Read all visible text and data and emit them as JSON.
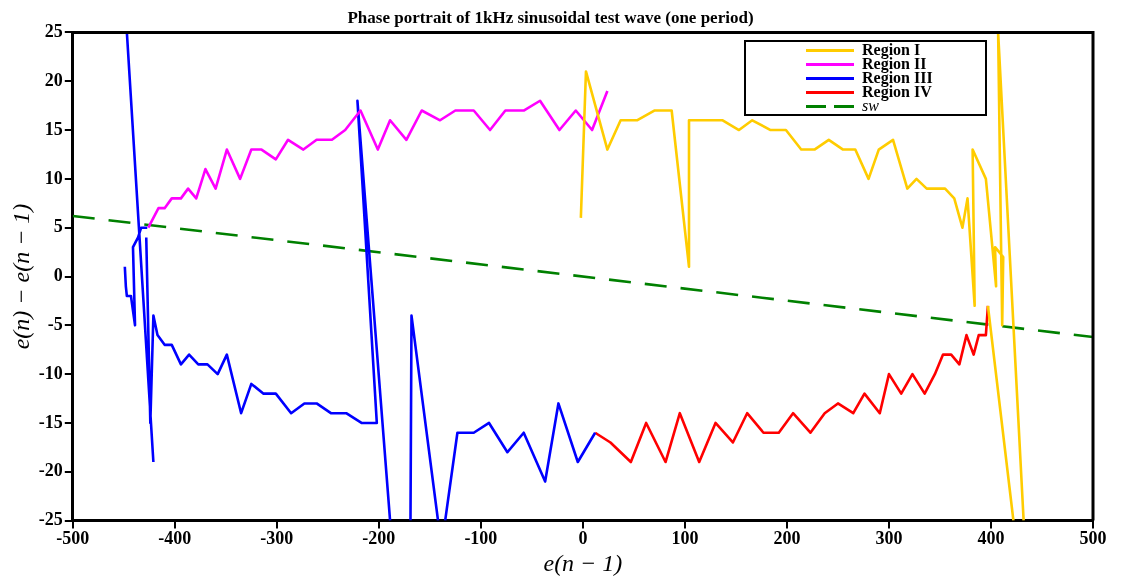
{
  "chart_data": {
    "type": "line",
    "title": "Phase portrait of 1kHz sinusoidal test wave (one period)",
    "xlabel": "e(n − 1)",
    "ylabel": "e(n) − e(n − 1)",
    "xlim": [
      -500,
      500
    ],
    "ylim": [
      -25,
      25
    ],
    "xticks": [
      -500,
      -400,
      -300,
      -200,
      -100,
      0,
      100,
      200,
      300,
      400,
      500
    ],
    "yticks": [
      -25,
      -20,
      -15,
      -10,
      -5,
      0,
      5,
      10,
      15,
      20,
      25
    ],
    "grid": false,
    "legend": "top right",
    "series": [
      {
        "name": "Region I",
        "color": "#ffcc00",
        "x": [
          -2,
          3,
          24,
          37,
          53,
          70,
          87,
          104,
          104,
          114,
          137,
          153,
          166,
          184,
          199,
          214,
          227,
          241,
          255,
          267,
          280,
          290,
          304,
          318,
          327,
          337,
          355,
          364,
          372,
          377,
          384,
          382,
          395,
          405,
          404,
          412,
          411,
          407,
          432,
          null,
          397,
          422
        ],
        "values": [
          6,
          21,
          13,
          16,
          16,
          17,
          17,
          1,
          16,
          16,
          16,
          15,
          16,
          15,
          15,
          13,
          13,
          14,
          13,
          13,
          10,
          13,
          14,
          9,
          10,
          9,
          9,
          8,
          5,
          8,
          -3,
          13,
          10,
          -1,
          3,
          2,
          -5,
          25,
          -25,
          null,
          -3,
          -25
        ]
      },
      {
        "name": "Region II",
        "color": "#ff00ff",
        "x": [
          -426,
          -416,
          -410,
          -403,
          -394,
          -387,
          -379,
          -370,
          -360,
          -349,
          -336,
          -325,
          -315,
          -301,
          -289,
          -274,
          -261,
          -246,
          -233,
          -218,
          -201,
          -189,
          -173,
          -158,
          -140,
          -125,
          -107,
          -91,
          -76,
          -58,
          -42,
          -23,
          -7,
          9,
          24
        ],
        "values": [
          5,
          7,
          7,
          8,
          8,
          9,
          8,
          11,
          9,
          13,
          10,
          13,
          13,
          12,
          14,
          13,
          14,
          14,
          15,
          17,
          13,
          16,
          14,
          17,
          16,
          17,
          17,
          15,
          17,
          17,
          18,
          15,
          17,
          15,
          19
        ]
      },
      {
        "name": "Region III",
        "color": "#0000ff",
        "x": [
          -449,
          -448,
          -447,
          -443,
          -439,
          -441,
          -436,
          -433,
          -427,
          null,
          -447,
          -421,
          null,
          -428,
          -424,
          -421,
          -417,
          -410,
          -403,
          -394,
          -386,
          -377,
          -368,
          -358,
          -349,
          -335,
          -325,
          -313,
          -301,
          -286,
          -273,
          -261,
          -247,
          -232,
          -217,
          -202,
          -221,
          -189,
          null,
          -169,
          -168,
          -142,
          null,
          -135,
          -123,
          -107,
          -92,
          -74,
          -58,
          -37,
          -24,
          -5,
          12
        ],
        "values": [
          1,
          -1,
          -2,
          -2,
          -5,
          3,
          4,
          5,
          5,
          null,
          25,
          -19,
          null,
          4,
          -15,
          -4,
          -6,
          -7,
          -7,
          -9,
          -8,
          -9,
          -9,
          -10,
          -8,
          -14,
          -11,
          -12,
          -12,
          -14,
          -13,
          -13,
          -14,
          -14,
          -15,
          -15,
          18,
          -25,
          null,
          -25,
          -4,
          -25,
          null,
          -25,
          -16,
          -16,
          -15,
          -18,
          -16,
          -21,
          -13,
          -19,
          -16
        ]
      },
      {
        "name": "Region IV",
        "color": "#ff0000",
        "x": [
          12,
          27,
          47,
          62,
          81,
          95,
          114,
          130,
          147,
          161,
          177,
          192,
          206,
          223,
          237,
          250,
          265,
          276,
          291,
          300,
          312,
          323,
          335,
          345,
          353,
          361,
          369,
          376,
          383,
          388,
          395,
          397
        ],
        "values": [
          -16,
          -17,
          -19,
          -15,
          -19,
          -14,
          -19,
          -15,
          -17,
          -14,
          -16,
          -16,
          -14,
          -16,
          -14,
          -13,
          -14,
          -12,
          -14,
          -10,
          -12,
          -10,
          -12,
          -10,
          -8,
          -8,
          -9,
          -6,
          -8,
          -6,
          -6,
          -3
        ]
      },
      {
        "name": "sw",
        "color": "#008000",
        "line_style": "dashed",
        "x": [
          -500,
          500
        ],
        "values": [
          6.2,
          -6.2
        ]
      }
    ]
  }
}
